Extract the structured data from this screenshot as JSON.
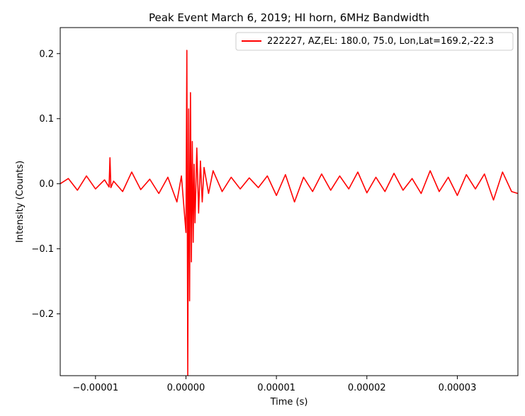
{
  "chart_data": {
    "type": "line",
    "title": "Peak Event March 6, 2019; HI horn, 6MHz Bandwidth",
    "xlabel": "Time (s)",
    "ylabel": "Intensity (Counts)",
    "xlim": [
      -1.39e-05,
      3.67e-05
    ],
    "ylim": [
      -0.295,
      0.24
    ],
    "x_ticks": [
      -1e-05,
      0.0,
      1e-05,
      2e-05,
      3e-05
    ],
    "x_tick_labels": [
      "−0.00001",
      "0.00000",
      "0.00001",
      "0.00002",
      "0.00003"
    ],
    "y_ticks": [
      -0.2,
      -0.1,
      0.0,
      0.1,
      0.2
    ],
    "y_tick_labels": [
      "−0.2",
      "−0.1",
      "0.0",
      "0.1",
      "0.2"
    ],
    "grid": false,
    "legend_position": "top-right",
    "series": [
      {
        "name": "222227, AZ,EL: 180.0, 75.0, Lon,Lat=169.2,-22.3",
        "color": "#ff0000",
        "x": [
          -1.39e-05,
          -1.3e-05,
          -1.2e-05,
          -1.1e-05,
          -1e-05,
          -9e-06,
          -8.5e-06,
          -8.4e-06,
          -8.3e-06,
          -8e-06,
          -7e-06,
          -6e-06,
          -5e-06,
          -4e-06,
          -3e-06,
          -2e-06,
          -1e-06,
          -5e-07,
          0.0,
          1e-07,
          2e-07,
          3e-07,
          4e-07,
          5e-07,
          6e-07,
          7e-07,
          8e-07,
          9e-07,
          1e-06,
          1.2e-06,
          1.4e-06,
          1.6e-06,
          1.8e-06,
          2e-06,
          2.5e-06,
          3e-06,
          4e-06,
          5e-06,
          6e-06,
          7e-06,
          8e-06,
          9e-06,
          1e-05,
          1.1e-05,
          1.2e-05,
          1.3e-05,
          1.4e-05,
          1.5e-05,
          1.6e-05,
          1.7e-05,
          1.8e-05,
          1.9e-05,
          2e-05,
          2.1e-05,
          2.2e-05,
          2.3e-05,
          2.4e-05,
          2.5e-05,
          2.6e-05,
          2.7e-05,
          2.8e-05,
          2.9e-05,
          3e-05,
          3.1e-05,
          3.2e-05,
          3.3e-05,
          3.4e-05,
          3.5e-05,
          3.6e-05,
          3.67e-05
        ],
        "y": [
          0.0,
          0.008,
          -0.01,
          0.012,
          -0.008,
          0.006,
          -0.005,
          0.04,
          -0.006,
          0.004,
          -0.012,
          0.018,
          -0.009,
          0.007,
          -0.015,
          0.01,
          -0.028,
          0.012,
          -0.075,
          0.205,
          -0.295,
          0.115,
          -0.18,
          0.14,
          -0.12,
          0.065,
          -0.09,
          0.03,
          -0.06,
          0.055,
          -0.045,
          0.035,
          -0.028,
          0.025,
          -0.015,
          0.02,
          -0.012,
          0.01,
          -0.008,
          0.009,
          -0.006,
          0.012,
          -0.018,
          0.014,
          -0.028,
          0.01,
          -0.012,
          0.015,
          -0.01,
          0.012,
          -0.008,
          0.018,
          -0.014,
          0.01,
          -0.012,
          0.016,
          -0.01,
          0.008,
          -0.015,
          0.02,
          -0.012,
          0.01,
          -0.018,
          0.014,
          -0.008,
          0.015,
          -0.025,
          0.018,
          -0.012,
          -0.015
        ]
      }
    ]
  }
}
